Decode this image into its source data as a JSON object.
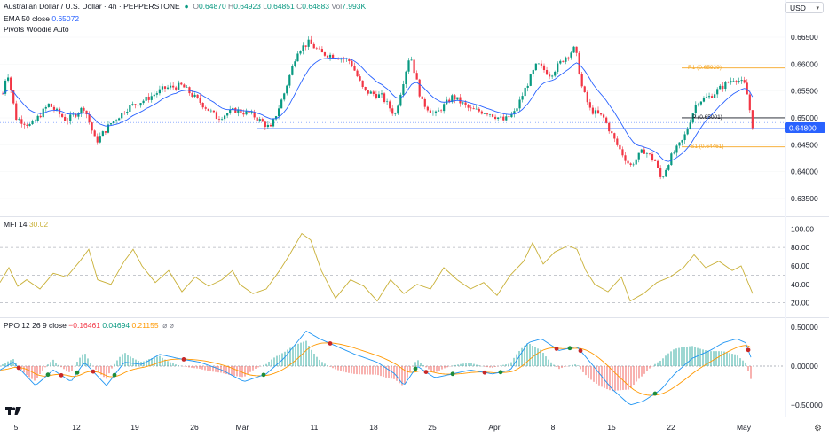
{
  "header": {
    "symbol": "Australian Dollar / U.S. Dollar · 4h · PEPPERSTONE",
    "ohlc": [
      {
        "k": "O",
        "v": "0.64870"
      },
      {
        "k": "H",
        "v": "0.64923"
      },
      {
        "k": "L",
        "v": "0.64851"
      },
      {
        "k": "C",
        "v": "0.64883"
      }
    ],
    "vol_label": "Vol",
    "vol_value": "7.993K",
    "currency": "USD",
    "ema_label": "EMA 50 close",
    "ema_value": "0.65072",
    "pivots_label": "Pivots Woodie Auto"
  },
  "colors": {
    "up": "#089981",
    "down": "#f23645",
    "ema": "#2962ff",
    "pivot": "#f5a623",
    "mfi": "#c9b037",
    "ppo_line": "#2196f3",
    "ppo_signal": "#ff9800",
    "price_badge": "#2962ff"
  },
  "price_axis": {
    "ticks": [
      "0.66500",
      "0.66000",
      "0.65500",
      "0.65000",
      "0.64500",
      "0.64000",
      "0.63500"
    ],
    "current": "0.64800"
  },
  "pivots": {
    "r1": "R1 (0.65929)",
    "p": "P (0.65001)",
    "s1": "S1 (0.64461)"
  },
  "mfi": {
    "label": "MFI 14",
    "value": "30.02",
    "ticks": [
      "100.00",
      "80.00",
      "60.00",
      "40.00",
      "20.00"
    ]
  },
  "ppo": {
    "label": "PPO 12 26 9 close",
    "v1": "−0.16461",
    "v2": "0.04694",
    "v3": "0.21155",
    "ticks": [
      "0.50000",
      "0.00000",
      "−0.50000"
    ]
  },
  "time_axis": [
    "5",
    "12",
    "19",
    "26",
    "Mar",
    "11",
    "18",
    "25",
    "Apr",
    "8",
    "15",
    "22",
    "May"
  ],
  "chart_data": [
    {
      "type": "line",
      "name": "price",
      "x": [
        "5",
        "12",
        "19",
        "26",
        "Mar",
        "11",
        "18",
        "25",
        "Apr",
        "8",
        "15",
        "22",
        "May"
      ],
      "series": [
        {
          "name": "",
          "values": [
            0.6505,
            0.6465,
            0.6525,
            0.6505,
            0.649,
            0.664,
            0.6555,
            0.651,
            0.65,
            0.663,
            0.6405,
            0.646,
            0.6485
          ]
        }
      ],
      "ylim": [
        0.6325,
        0.668
      ]
    },
    {
      "type": "line",
      "name": "mfi",
      "series": [
        {
          "name": "",
          "values": [
            52,
            38,
            72,
            42,
            38,
            92,
            30,
            42,
            45,
            85,
            22,
            65,
            30
          ]
        }
      ],
      "ylim": [
        12,
        106
      ]
    },
    {
      "type": "line",
      "name": "ppo",
      "series": [
        {
          "name": "",
          "values": [
            0.05,
            -0.15,
            0.15,
            0.05,
            -0.15,
            0.45,
            0.05,
            -0.15,
            -0.05,
            0.4,
            -0.5,
            0.1,
            0.3
          ]
        }
      ],
      "ylim": [
        -0.56,
        0.56
      ]
    }
  ]
}
